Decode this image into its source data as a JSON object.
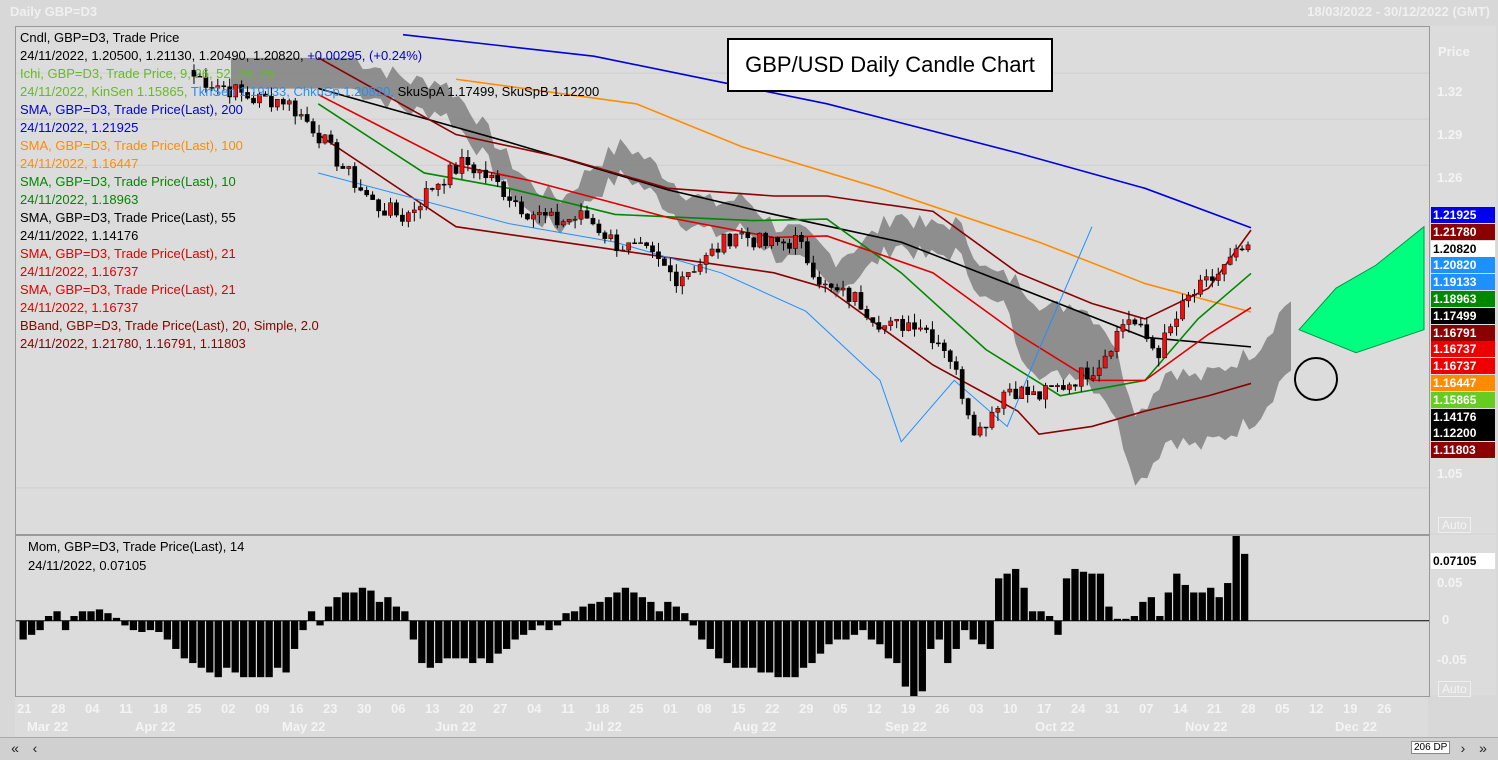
{
  "window": {
    "title_left": "Daily GBP=D3",
    "title_right": "18/03/2022 - 30/12/2022 (GMT)"
  },
  "chart_box_title": "GBP/USD Daily Candle Chart",
  "legend": [
    {
      "text": "Cndl, GBP=D3, Trade Price",
      "color": "#000000"
    },
    {
      "segments": [
        {
          "text": "24/11/2022, 1.20500, 1.21130, 1.20490, 1.20820, ",
          "color": "#000000"
        },
        {
          "text": "+0.00295, (+0.24%)",
          "color": "#0000cc"
        }
      ]
    },
    {
      "text": "Ichi, GBP=D3, Trade Price,  9, 26, 52, 26, 26",
      "color": "#66bb22"
    },
    {
      "segments": [
        {
          "text": "24/11/2022, KinSen 1.15865, ",
          "color": "#66bb22"
        },
        {
          "text": "TknSen 1.19133, ChkuSp 1.20820, ",
          "color": "#1e90ff"
        },
        {
          "text": "SkuSpA 1.17499, SkuSpB 1.12200",
          "color": "#000000"
        }
      ]
    },
    {
      "text": "SMA, GBP=D3, Trade Price(Last),  200",
      "color": "#0000dd"
    },
    {
      "text": "24/11/2022, 1.21925",
      "color": "#0000dd"
    },
    {
      "text": "SMA, GBP=D3, Trade Price(Last),  100",
      "color": "#ff8c00"
    },
    {
      "text": "24/11/2022, 1.16447",
      "color": "#ff8c00"
    },
    {
      "text": "SMA, GBP=D3, Trade Price(Last),  10",
      "color": "#008800"
    },
    {
      "text": "24/11/2022, 1.18963",
      "color": "#008800"
    },
    {
      "text": "SMA, GBP=D3, Trade Price(Last),  55",
      "color": "#000000"
    },
    {
      "text": "24/11/2022, 1.14176",
      "color": "#000000"
    },
    {
      "text": "SMA, GBP=D3, Trade Price(Last),  21",
      "color": "#dd0000"
    },
    {
      "text": "24/11/2022, 1.16737",
      "color": "#dd0000"
    },
    {
      "text": "SMA, GBP=D3, Trade Price(Last),  21",
      "color": "#dd0000"
    },
    {
      "text": "24/11/2022, 1.16737",
      "color": "#dd0000"
    },
    {
      "text": "BBand, GBP=D3, Trade Price(Last),  20, Simple, 2.0",
      "color": "#8b0000"
    },
    {
      "text": "24/11/2022, 1.21780, 1.16791, 1.11803",
      "color": "#8b0000"
    }
  ],
  "price_axis": {
    "title": "Price",
    "labels": [
      "1.32",
      "1.29",
      "1.26",
      "1.05"
    ],
    "auto": "Auto"
  },
  "price_tags": [
    {
      "text": "1.21925",
      "bg": "#0000ee",
      "fg": "#ffffff"
    },
    {
      "text": "1.21780",
      "bg": "#8b0000",
      "fg": "#ffffff"
    },
    {
      "text": "1.20820",
      "bg": "#ffffff",
      "fg": "#000000"
    },
    {
      "text": "1.20820",
      "bg": "#1e90ff",
      "fg": "#ffffff"
    },
    {
      "text": "1.19133",
      "bg": "#1e90ff",
      "fg": "#ffffff"
    },
    {
      "text": "1.18963",
      "bg": "#008800",
      "fg": "#ffffff"
    },
    {
      "text": "1.17499",
      "bg": "#000000",
      "fg": "#ffffff"
    },
    {
      "text": "1.16791",
      "bg": "#8b0000",
      "fg": "#ffffff"
    },
    {
      "text": "1.16737",
      "bg": "#ee0000",
      "fg": "#ffffff"
    },
    {
      "text": "1.16737",
      "bg": "#ee0000",
      "fg": "#ffffff"
    },
    {
      "text": "1.16447",
      "bg": "#ff8c00",
      "fg": "#ffffff"
    },
    {
      "text": "1.15865",
      "bg": "#66cc22",
      "fg": "#ffffff"
    },
    {
      "text": "1.14176",
      "bg": "#000000",
      "fg": "#ffffff"
    },
    {
      "text": "1.12200",
      "bg": "#000000",
      "fg": "#ffffff"
    },
    {
      "text": "1.11803",
      "bg": "#8b0000",
      "fg": "#ffffff"
    }
  ],
  "mom_legend": {
    "line1": "Mom, GBP=D3, Trade Price(Last),  14",
    "line2": "24/11/2022, 0.07105"
  },
  "mom_axis": {
    "labels": [
      "0.05",
      "0",
      "-0.05"
    ],
    "current": "0.07105",
    "auto": "Auto"
  },
  "date_axis": {
    "days": [
      "21",
      "28",
      "04",
      "11",
      "18",
      "25",
      "02",
      "09",
      "16",
      "23",
      "30",
      "06",
      "13",
      "20",
      "27",
      "04",
      "11",
      "18",
      "25",
      "01",
      "08",
      "15",
      "22",
      "29",
      "05",
      "12",
      "19",
      "26",
      "03",
      "10",
      "17",
      "24",
      "31",
      "07",
      "14",
      "21",
      "28",
      "05",
      "12",
      "19",
      "26"
    ],
    "months": [
      "Mar 22",
      "Apr 22",
      "May 22",
      "Jun 22",
      "Jul 22",
      "Aug 22",
      "Sep 22",
      "Oct 22",
      "Nov 22",
      "Dec 22"
    ]
  },
  "scrollbar": {
    "dp": "206 DP"
  },
  "chart_data": {
    "type": "candlestick",
    "title": "GBP/USD Daily Candle Chart",
    "symbol": "GBP=D3",
    "ylim": [
      1.02,
      1.35
    ],
    "last_date": "24/11/2022",
    "last_ohlc": [
      1.205,
      1.2113,
      1.2049,
      1.2082
    ],
    "weekly_closes": {
      "dates": [
        "25 Mar",
        "01 Apr",
        "08 Apr",
        "15 Apr",
        "22 Apr",
        "29 Apr",
        "06 May",
        "13 May",
        "20 May",
        "27 May",
        "03 Jun",
        "10 Jun",
        "17 Jun",
        "24 Jun",
        "01 Jul",
        "08 Jul",
        "15 Jul",
        "22 Jul",
        "29 Jul",
        "05 Aug",
        "12 Aug",
        "19 Aug",
        "26 Aug",
        "02 Sep",
        "09 Sep",
        "16 Sep",
        "23 Sep",
        "30 Sep",
        "07 Oct",
        "14 Oct",
        "21 Oct",
        "28 Oct",
        "04 Nov",
        "11 Nov",
        "18 Nov",
        "24 Nov"
      ],
      "values": [
        1.318,
        1.311,
        1.303,
        1.303,
        1.284,
        1.257,
        1.234,
        1.226,
        1.248,
        1.262,
        1.249,
        1.231,
        1.223,
        1.227,
        1.209,
        1.203,
        1.187,
        1.199,
        1.217,
        1.208,
        1.211,
        1.179,
        1.173,
        1.154,
        1.159,
        1.141,
        1.085,
        1.116,
        1.109,
        1.118,
        1.13,
        1.162,
        1.138,
        1.173,
        1.189,
        1.2082
      ]
    },
    "series": [
      {
        "name": "SMA 200",
        "color": "#0000dd",
        "points": [
          [
            1.345,
            0.2
          ],
          [
            1.331,
            0.38
          ],
          [
            1.3,
            0.6
          ],
          [
            1.268,
            0.78
          ],
          [
            1.245,
            0.9
          ],
          [
            1.2193,
            1.0
          ]
        ]
      },
      {
        "name": "SMA 100",
        "color": "#ff8c00",
        "points": [
          [
            1.316,
            0.25
          ],
          [
            1.3,
            0.42
          ],
          [
            1.272,
            0.52
          ],
          [
            1.245,
            0.65
          ],
          [
            1.21,
            0.8
          ],
          [
            1.183,
            0.9
          ],
          [
            1.1645,
            1.0
          ]
        ]
      },
      {
        "name": "SMA 55",
        "color": "#000000",
        "points": [
          [
            1.31,
            0.12
          ],
          [
            1.275,
            0.3
          ],
          [
            1.244,
            0.45
          ],
          [
            1.228,
            0.55
          ],
          [
            1.21,
            0.67
          ],
          [
            1.175,
            0.8
          ],
          [
            1.148,
            0.9
          ],
          [
            1.1418,
            1.0
          ]
        ]
      },
      {
        "name": "SMA 10",
        "color": "#008800",
        "points": [
          [
            1.3,
            0.12
          ],
          [
            1.255,
            0.22
          ],
          [
            1.245,
            0.3
          ],
          [
            1.228,
            0.4
          ],
          [
            1.224,
            0.53
          ],
          [
            1.225,
            0.6
          ],
          [
            1.19,
            0.67
          ],
          [
            1.14,
            0.75
          ],
          [
            1.11,
            0.82
          ],
          [
            1.12,
            0.9
          ],
          [
            1.16,
            0.95
          ],
          [
            1.1896,
            1.0
          ]
        ]
      },
      {
        "name": "SMA 21",
        "color": "#dd0000",
        "points": [
          [
            1.306,
            0.12
          ],
          [
            1.26,
            0.25
          ],
          [
            1.25,
            0.32
          ],
          [
            1.226,
            0.45
          ],
          [
            1.213,
            0.55
          ],
          [
            1.214,
            0.6
          ],
          [
            1.19,
            0.7
          ],
          [
            1.15,
            0.78
          ],
          [
            1.12,
            0.85
          ],
          [
            1.12,
            0.9
          ],
          [
            1.15,
            0.96
          ],
          [
            1.1674,
            1.0
          ]
        ]
      },
      {
        "name": "BBand upper",
        "color": "#8b0000",
        "points": [
          [
            1.33,
            0.12
          ],
          [
            1.28,
            0.25
          ],
          [
            1.265,
            0.35
          ],
          [
            1.245,
            0.45
          ],
          [
            1.24,
            0.55
          ],
          [
            1.24,
            0.6
          ],
          [
            1.23,
            0.7
          ],
          [
            1.19,
            0.78
          ],
          [
            1.17,
            0.85
          ],
          [
            1.16,
            0.9
          ],
          [
            1.18,
            0.96
          ],
          [
            1.2178,
            1.0
          ]
        ]
      },
      {
        "name": "BBand lower",
        "color": "#8b0000",
        "points": [
          [
            1.28,
            0.12
          ],
          [
            1.22,
            0.25
          ],
          [
            1.21,
            0.35
          ],
          [
            1.2,
            0.45
          ],
          [
            1.19,
            0.55
          ],
          [
            1.18,
            0.6
          ],
          [
            1.13,
            0.7
          ],
          [
            1.1,
            0.78
          ],
          [
            1.085,
            0.8
          ],
          [
            1.09,
            0.85
          ],
          [
            1.1,
            0.9
          ],
          [
            1.11,
            0.96
          ],
          [
            1.118,
            1.0
          ]
        ]
      },
      {
        "name": "Chikou Span",
        "color": "#1e90ff",
        "points": [
          [
            1.255,
            0.12
          ],
          [
            1.222,
            0.3
          ],
          [
            1.21,
            0.4
          ],
          [
            1.19,
            0.5
          ],
          [
            1.165,
            0.58
          ],
          [
            1.12,
            0.65
          ],
          [
            1.08,
            0.67
          ],
          [
            1.12,
            0.72
          ],
          [
            1.09,
            0.77
          ],
          [
            1.14,
            0.8
          ],
          [
            1.22,
            0.85
          ]
        ]
      }
    ],
    "ichimoku_cloud_future": {
      "range": [
        1.148,
        1.185
      ],
      "color": "#00ff7f"
    },
    "momentum": {
      "name": "Mom 14",
      "ylim": [
        -0.08,
        0.09
      ],
      "last_value": 0.07105,
      "values": [
        -0.02,
        -0.015,
        -0.01,
        0.005,
        0.01,
        -0.01,
        0.005,
        0.01,
        0.01,
        0.012,
        0.008,
        0.003,
        -0.005,
        -0.01,
        -0.012,
        -0.01,
        -0.012,
        -0.02,
        -0.03,
        -0.04,
        -0.045,
        -0.05,
        -0.055,
        -0.06,
        -0.05,
        -0.055,
        -0.06,
        -0.06,
        -0.06,
        -0.06,
        -0.05,
        -0.055,
        -0.03,
        -0.01,
        0.01,
        -0.005,
        0.015,
        0.025,
        0.03,
        0.03,
        0.035,
        0.032,
        0.02,
        0.025,
        0.015,
        0.01,
        -0.02,
        -0.045,
        -0.05,
        -0.045,
        -0.04,
        -0.04,
        -0.04,
        -0.045,
        -0.04,
        -0.045,
        -0.035,
        -0.03,
        -0.02,
        -0.015,
        -0.01,
        -0.005,
        -0.01,
        -0.005,
        0.008,
        0.01,
        0.015,
        0.018,
        0.02,
        0.025,
        0.03,
        0.035,
        0.03,
        0.025,
        0.02,
        0.01,
        0.02,
        0.015,
        0.008,
        -0.005,
        -0.02,
        -0.03,
        -0.04,
        -0.045,
        -0.05,
        -0.05,
        -0.05,
        -0.055,
        -0.055,
        -0.06,
        -0.06,
        -0.06,
        -0.05,
        -0.045,
        -0.035,
        -0.025,
        -0.02,
        -0.02,
        -0.015,
        -0.01,
        -0.02,
        -0.025,
        -0.04,
        -0.045,
        -0.07,
        -0.08,
        -0.075,
        -0.03,
        -0.02,
        -0.045,
        -0.03,
        -0.01,
        -0.02,
        -0.025,
        -0.03,
        0.045,
        0.05,
        0.055,
        0.035,
        0.01,
        0.01,
        0.005,
        -0.015,
        0.045,
        0.055,
        0.052,
        0.05,
        0.05,
        0.015,
        0.002,
        0.002,
        0.005,
        0.02,
        0.025,
        0.005,
        0.03,
        0.05,
        0.038,
        0.03,
        0.03,
        0.035,
        0.025,
        0.04,
        0.09,
        0.071
      ]
    }
  }
}
